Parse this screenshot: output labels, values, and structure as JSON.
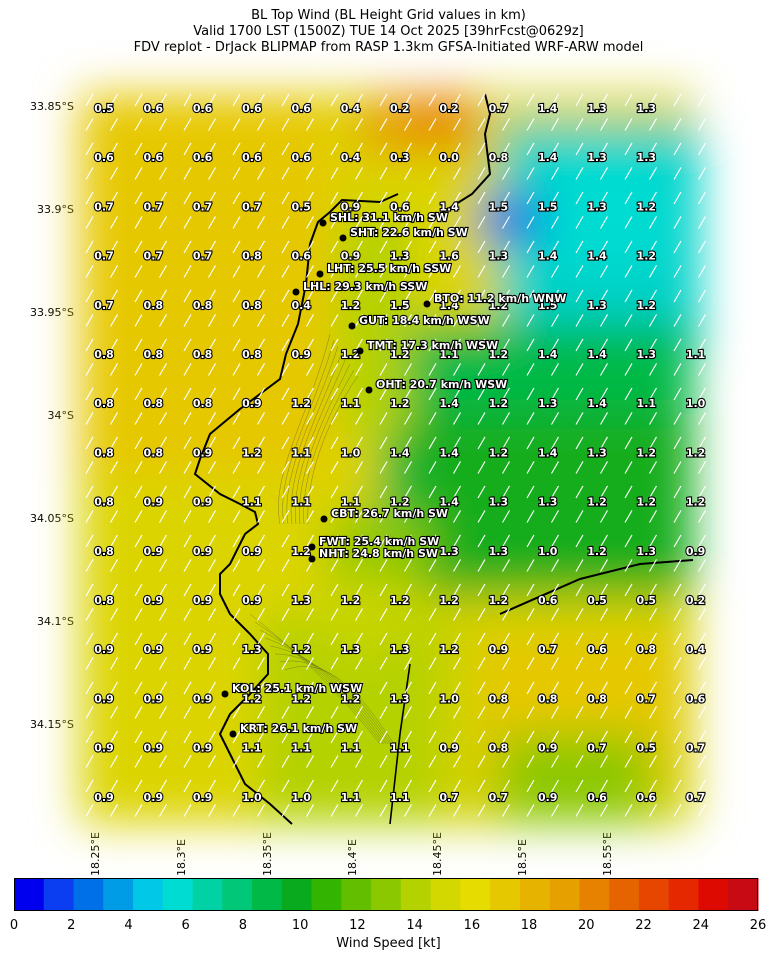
{
  "title": {
    "line1": "BL Top Wind (BL Height Grid values in km)",
    "line2": "Valid 1700 LST (1500Z) TUE 14 Oct 2025 [39hrFcst@0629z]",
    "line3": "FDV replot - DrJack BLIPMAP from RASP 1.3km GFSA-Initiated WRF-ARW model"
  },
  "lat_labels": [
    "33.85°S",
    "33.9°S",
    "33.95°S",
    "34°S",
    "34.05°S",
    "34.1°S",
    "34.15°S"
  ],
  "lon_labels": [
    "18.25°E",
    "18.3°E",
    "18.35°E",
    "18.4°E",
    "18.45°E",
    "18.5°E",
    "18.55°E"
  ],
  "grid_values": [
    [
      "0.5",
      "0.6",
      "0.6",
      "0.6",
      "0.6",
      "0.4",
      "0.2",
      "0.2",
      "0.7",
      "1.4",
      "1.3",
      "1.3",
      ""
    ],
    [
      "0.6",
      "0.6",
      "0.6",
      "0.6",
      "0.6",
      "0.4",
      "0.3",
      "0.0",
      "0.8",
      "1.4",
      "1.3",
      "1.3",
      ""
    ],
    [
      "0.7",
      "0.7",
      "0.7",
      "0.7",
      "0.5",
      "0.9",
      "0.6",
      "1.4",
      "1.5",
      "1.5",
      "1.3",
      "1.2",
      ""
    ],
    [
      "0.7",
      "0.7",
      "0.7",
      "0.8",
      "0.6",
      "0.9",
      "1.3",
      "1.6",
      "1.3",
      "1.4",
      "1.4",
      "1.2",
      ""
    ],
    [
      "0.7",
      "0.8",
      "0.8",
      "0.8",
      "0.4",
      "1.2",
      "1.5",
      "1.4",
      "1.2",
      "1.5",
      "1.3",
      "1.2",
      ""
    ],
    [
      "0.8",
      "0.8",
      "0.8",
      "0.8",
      "0.9",
      "1.2",
      "1.2",
      "1.1",
      "1.2",
      "1.4",
      "1.4",
      "1.3",
      "1.1"
    ],
    [
      "0.8",
      "0.8",
      "0.8",
      "0.9",
      "1.2",
      "1.1",
      "1.2",
      "1.4",
      "1.2",
      "1.3",
      "1.4",
      "1.1",
      "1.0"
    ],
    [
      "0.8",
      "0.8",
      "0.9",
      "1.2",
      "1.1",
      "1.0",
      "1.4",
      "1.4",
      "1.2",
      "1.4",
      "1.3",
      "1.2",
      "1.2"
    ],
    [
      "0.8",
      "0.9",
      "0.9",
      "1.1",
      "1.1",
      "1.1",
      "1.2",
      "1.4",
      "1.3",
      "1.3",
      "1.2",
      "1.2",
      "1.2"
    ],
    [
      "0.8",
      "0.9",
      "0.9",
      "0.9",
      "1.2",
      "",
      "",
      "1.3",
      "1.3",
      "1.0",
      "1.2",
      "1.3",
      "0.9"
    ],
    [
      "0.8",
      "0.9",
      "0.9",
      "0.9",
      "1.3",
      "1.2",
      "1.2",
      "1.2",
      "1.2",
      "0.6",
      "0.5",
      "0.5",
      "0.2"
    ],
    [
      "0.9",
      "0.9",
      "0.9",
      "1.3",
      "1.2",
      "1.3",
      "1.3",
      "1.2",
      "0.9",
      "0.7",
      "0.6",
      "0.8",
      "0.4"
    ],
    [
      "0.9",
      "0.9",
      "0.9",
      "1.2",
      "1.2",
      "1.2",
      "1.3",
      "1.0",
      "0.8",
      "0.8",
      "0.8",
      "0.7",
      "0.6"
    ],
    [
      "0.9",
      "0.9",
      "0.9",
      "1.1",
      "1.1",
      "1.1",
      "1.1",
      "0.9",
      "0.8",
      "0.9",
      "0.7",
      "0.5",
      "0.7"
    ],
    [
      "0.9",
      "0.9",
      "0.9",
      "1.0",
      "1.0",
      "1.1",
      "1.1",
      "0.7",
      "0.7",
      "0.9",
      "0.6",
      "0.6",
      "0.7"
    ]
  ],
  "stations": [
    {
      "name": "SHL",
      "text": "SHL: 31.1 km/h SW"
    },
    {
      "name": "SHT",
      "text": "SHT: 22.6 km/h SW"
    },
    {
      "name": "LHT",
      "text": "LHT: 25.5 km/h SSW"
    },
    {
      "name": "LHL",
      "text": "LHL: 29.3 km/h SSW"
    },
    {
      "name": "BTO",
      "text": "BTO: 11.2 km/h WNW"
    },
    {
      "name": "GUT",
      "text": "GUT: 18.4 km/h WSW"
    },
    {
      "name": "TMT",
      "text": "TMT: 17.3 km/h WSW"
    },
    {
      "name": "OHT",
      "text": "OHT: 20.7 km/h WSW"
    },
    {
      "name": "CBT",
      "text": "CBT: 26.7 km/h SW"
    },
    {
      "name": "FWT",
      "text": "FWT: 25.4 km/h SW"
    },
    {
      "name": "NHT",
      "text": "NHT: 24.8 km/h SW"
    },
    {
      "name": "KOL",
      "text": "KOL: 25.1 km/h WSW"
    },
    {
      "name": "KRT",
      "text": "KRT: 26.1 km/h SW"
    }
  ],
  "colorbar": {
    "label": "Wind Speed [kt]",
    "ticks": [
      "0",
      "2",
      "4",
      "6",
      "8",
      "10",
      "12",
      "14",
      "16",
      "18",
      "20",
      "22",
      "24",
      "26"
    ],
    "colors": [
      "#0000ee",
      "#0a3ef0",
      "#0070e8",
      "#009de6",
      "#00c8e6",
      "#00dcd2",
      "#00d2a5",
      "#00c878",
      "#00b946",
      "#0aaa1e",
      "#32b400",
      "#64be00",
      "#8cc800",
      "#b4d200",
      "#d2d800",
      "#e6dc00",
      "#e6c800",
      "#e6b400",
      "#e6a000",
      "#e68200",
      "#e66400",
      "#e64600",
      "#e62800",
      "#dc0a00",
      "#c80a14"
    ]
  }
}
